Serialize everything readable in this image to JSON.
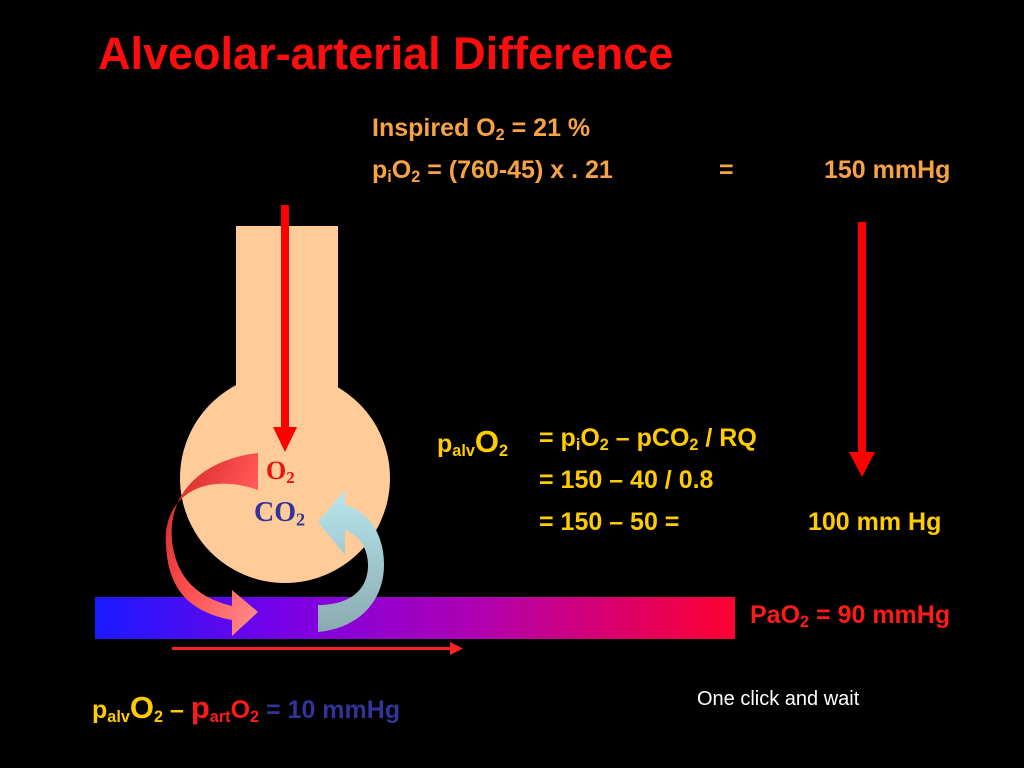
{
  "title": "Alveolar-arterial Difference",
  "inspired": {
    "line1_prefix": "Inspired O",
    "line1_sub": "2",
    "line1_suffix": " =  21 %",
    "line2_p": "p",
    "line2_p_sub": "i",
    "line2_o": "O",
    "line2_o_sub": "2",
    "line2_expr": " = (760-45) x . 21",
    "line2_equals": "=",
    "line2_result": "150 mmHg"
  },
  "alveolar_eq": {
    "p": "p",
    "p_sub": "alv",
    "o": "O",
    "o_sub": "2",
    "row1_a": "= p",
    "row1_sub_i": "i",
    "row1_b": "O",
    "row1_sub_2": "2",
    "row1_c": " – pCO",
    "row1_sub_2b": "2",
    "row1_d": " / RQ",
    "row2": "= 150 – 40 / 0.8",
    "row3": "= 150 – 50 =",
    "row3_result": "100 mm Hg"
  },
  "flask_labels": {
    "o2": "O",
    "o2_sub": "2",
    "co2": "CO",
    "co2_sub": "2"
  },
  "pao2": {
    "prefix": "PaO",
    "sub": "2",
    "suffix": " = 90 mmHg"
  },
  "bottom_eq": {
    "p_alv": "p",
    "p_alv_sub": "alv",
    "o2a": "O",
    "o2a_sub": "2",
    "minus": " – ",
    "p_art": "p",
    "p_art_sub": "art",
    "o2b": "O",
    "o2b_sub": "2",
    "result": " = 10 mmHg"
  },
  "hint": "One click and wait",
  "colors": {
    "title": "#ff0d0d",
    "orange": "#f7a245",
    "yellow": "#ffcc00",
    "blue": "#333399",
    "flask": "#ffcc99",
    "arrow": "#ff0000"
  }
}
